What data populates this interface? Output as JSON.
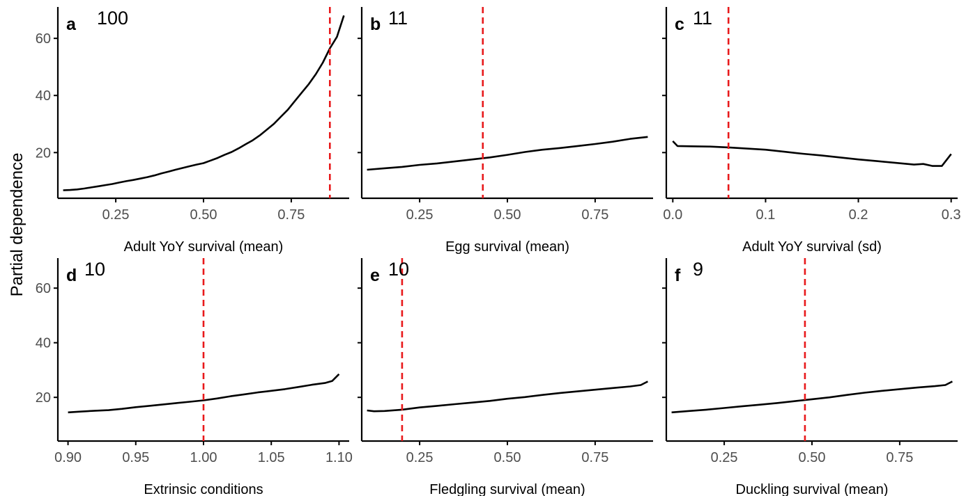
{
  "figure": {
    "ylabel": "Partial dependence",
    "colors": {
      "line": "#000000",
      "reference": "#e8191b",
      "axis": "#000000",
      "tick_text": "#4d4d4d"
    }
  },
  "chart_data": [
    {
      "type": "line",
      "panel": "a",
      "importance": "100",
      "xlabel": "Adult YoY survival (mean)",
      "xlim": [
        0.085,
        0.915
      ],
      "ylim": [
        4,
        71
      ],
      "xticks": [
        0.25,
        0.5,
        0.75
      ],
      "xtick_labels": [
        "0.25",
        "0.50",
        "0.75"
      ],
      "yticks": [
        20,
        40,
        60
      ],
      "ytick_labels": [
        "20",
        "40",
        "60"
      ],
      "reference_x": 0.86,
      "x": [
        0.1,
        0.12,
        0.14,
        0.16,
        0.18,
        0.2,
        0.22,
        0.24,
        0.26,
        0.28,
        0.3,
        0.32,
        0.34,
        0.36,
        0.38,
        0.4,
        0.42,
        0.44,
        0.46,
        0.48,
        0.5,
        0.52,
        0.54,
        0.56,
        0.58,
        0.6,
        0.62,
        0.64,
        0.66,
        0.68,
        0.7,
        0.72,
        0.74,
        0.76,
        0.78,
        0.8,
        0.82,
        0.84,
        0.86,
        0.88,
        0.9
      ],
      "y": [
        6.8,
        6.9,
        7.1,
        7.4,
        7.8,
        8.2,
        8.6,
        9.0,
        9.5,
        10.0,
        10.4,
        10.9,
        11.4,
        12.0,
        12.7,
        13.3,
        14.0,
        14.6,
        15.2,
        15.8,
        16.3,
        17.2,
        18.1,
        19.2,
        20.2,
        21.5,
        22.9,
        24.3,
        26.0,
        28.0,
        30.0,
        32.5,
        35.0,
        38.0,
        41.0,
        44.0,
        47.5,
        51.5,
        56.5,
        60.5,
        68.0
      ]
    },
    {
      "type": "line",
      "panel": "b",
      "importance": "11",
      "xlabel": "Egg survival (mean)",
      "xlim": [
        0.085,
        0.915
      ],
      "ylim": [
        4,
        71
      ],
      "xticks": [
        0.25,
        0.5,
        0.75
      ],
      "xtick_labels": [
        "0.25",
        "0.50",
        "0.75"
      ],
      "yticks": [
        20,
        40,
        60
      ],
      "reference_x": 0.43,
      "x": [
        0.1,
        0.15,
        0.2,
        0.25,
        0.3,
        0.35,
        0.4,
        0.45,
        0.5,
        0.55,
        0.6,
        0.65,
        0.7,
        0.75,
        0.8,
        0.85,
        0.9
      ],
      "y": [
        14.0,
        14.5,
        15.0,
        15.7,
        16.2,
        16.9,
        17.6,
        18.3,
        19.2,
        20.2,
        21.0,
        21.6,
        22.3,
        23.0,
        23.8,
        24.8,
        25.5
      ]
    },
    {
      "type": "line",
      "panel": "c",
      "importance": "11",
      "xlabel": "Adult YoY survival (sd)",
      "xlim": [
        -0.007,
        0.307
      ],
      "ylim": [
        4,
        71
      ],
      "xticks": [
        0.0,
        0.1,
        0.2,
        0.3
      ],
      "xtick_labels": [
        "0.0",
        "0.1",
        "0.2",
        "0.3"
      ],
      "yticks": [
        20,
        40,
        60
      ],
      "reference_x": 0.06,
      "x": [
        0.0,
        0.005,
        0.02,
        0.04,
        0.06,
        0.08,
        0.1,
        0.12,
        0.14,
        0.16,
        0.18,
        0.2,
        0.22,
        0.24,
        0.26,
        0.27,
        0.28,
        0.29,
        0.3
      ],
      "y": [
        24.0,
        22.3,
        22.2,
        22.1,
        21.8,
        21.4,
        21.0,
        20.3,
        19.6,
        19.0,
        18.3,
        17.6,
        17.0,
        16.4,
        15.8,
        16.0,
        15.3,
        15.3,
        19.5
      ]
    },
    {
      "type": "line",
      "panel": "d",
      "importance": "10",
      "xlabel": "Extrinsic conditions",
      "xlim": [
        0.8925,
        1.1075
      ],
      "ylim": [
        4,
        71
      ],
      "xticks": [
        0.9,
        0.95,
        1.0,
        1.05,
        1.1
      ],
      "xtick_labels": [
        "0.90",
        "0.95",
        "1.00",
        "1.05",
        "1.10"
      ],
      "yticks": [
        20,
        40,
        60
      ],
      "ytick_labels": [
        "20",
        "40",
        "60"
      ],
      "reference_x": 1.0,
      "x": [
        0.9,
        0.91,
        0.92,
        0.93,
        0.94,
        0.95,
        0.96,
        0.97,
        0.98,
        0.99,
        1.0,
        1.01,
        1.02,
        1.03,
        1.04,
        1.05,
        1.06,
        1.07,
        1.08,
        1.09,
        1.095,
        1.1
      ],
      "y": [
        14.5,
        14.8,
        15.1,
        15.3,
        15.8,
        16.4,
        16.9,
        17.4,
        17.9,
        18.4,
        18.9,
        19.6,
        20.4,
        21.1,
        21.8,
        22.4,
        23.0,
        23.8,
        24.6,
        25.3,
        26.0,
        28.5
      ]
    },
    {
      "type": "line",
      "panel": "e",
      "importance": "10",
      "xlabel": "Fledgling survival (mean)",
      "xlim": [
        0.085,
        0.915
      ],
      "ylim": [
        4,
        71
      ],
      "xticks": [
        0.25,
        0.5,
        0.75
      ],
      "xtick_labels": [
        "0.25",
        "0.50",
        "0.75"
      ],
      "yticks": [
        20,
        40,
        60
      ],
      "reference_x": 0.2,
      "x": [
        0.1,
        0.12,
        0.15,
        0.2,
        0.25,
        0.3,
        0.35,
        0.4,
        0.45,
        0.5,
        0.55,
        0.6,
        0.65,
        0.7,
        0.75,
        0.8,
        0.85,
        0.88,
        0.9
      ],
      "y": [
        15.2,
        14.9,
        15.0,
        15.5,
        16.3,
        16.9,
        17.5,
        18.1,
        18.7,
        19.5,
        20.1,
        20.9,
        21.6,
        22.2,
        22.8,
        23.4,
        24.0,
        24.5,
        25.8
      ]
    },
    {
      "type": "line",
      "panel": "f",
      "importance": "9",
      "xlabel": "Duckling survival (mean)",
      "xlim": [
        0.085,
        0.915
      ],
      "ylim": [
        4,
        71
      ],
      "xticks": [
        0.25,
        0.5,
        0.75
      ],
      "xtick_labels": [
        "0.25",
        "0.50",
        "0.75"
      ],
      "yticks": [
        20,
        40,
        60
      ],
      "reference_x": 0.48,
      "x": [
        0.1,
        0.15,
        0.2,
        0.25,
        0.3,
        0.35,
        0.4,
        0.45,
        0.5,
        0.55,
        0.6,
        0.65,
        0.7,
        0.75,
        0.8,
        0.85,
        0.88,
        0.9
      ],
      "y": [
        14.5,
        15.0,
        15.5,
        16.1,
        16.7,
        17.3,
        17.9,
        18.6,
        19.3,
        20.0,
        20.9,
        21.7,
        22.4,
        23.0,
        23.6,
        24.1,
        24.5,
        25.8
      ]
    }
  ]
}
